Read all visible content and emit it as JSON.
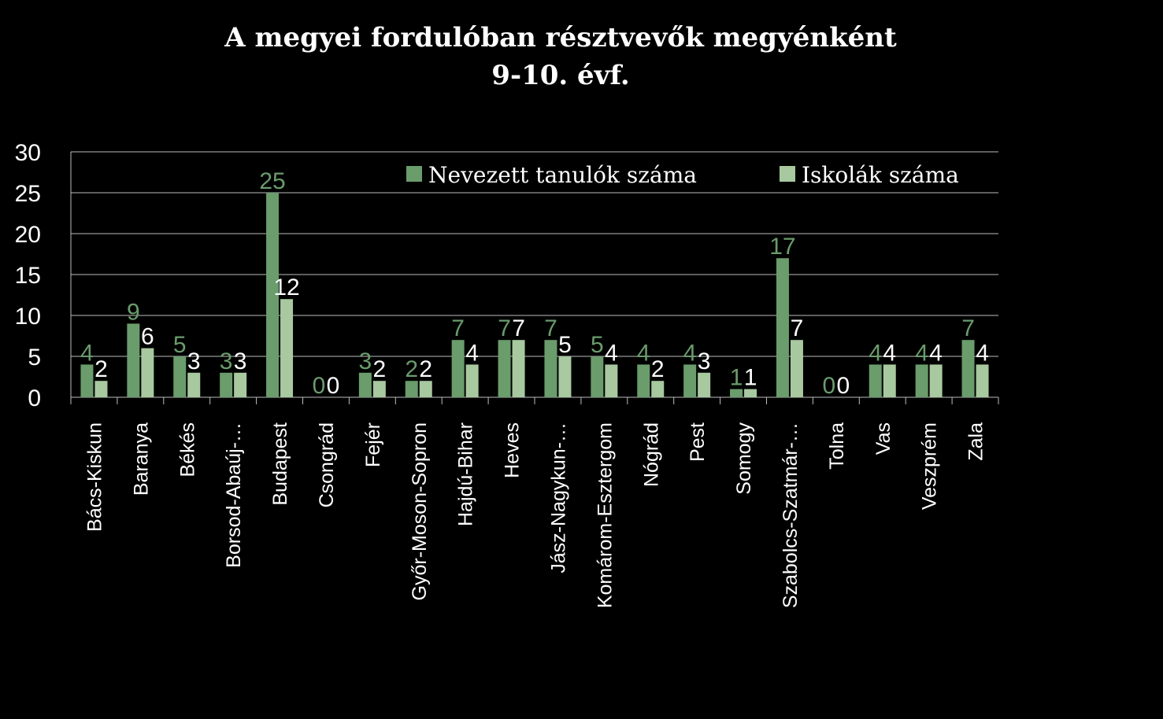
{
  "chart_data": {
    "type": "bar",
    "title": "A  megyei fordulóban résztvevők megyénként",
    "subtitle": "9-10. évf.",
    "categories": [
      "Bács-Kiskun",
      "Baranya",
      "Békés",
      "Borsod-Abaúj-…",
      "Budapest",
      "Csongrád",
      "Fejér",
      "Győr-Moson-Sopron",
      "Hajdú-Bihar",
      "Heves",
      "Jász-Nagykun-…",
      "Komárom-Esztergom",
      "Nógrád",
      "Pest",
      "Somogy",
      "Szabolcs-Szatmár-…",
      "Tolna",
      "Vas",
      "Veszprém",
      "Zala"
    ],
    "series": [
      {
        "name": "Nevezett tanulók száma",
        "color": "#6a9c6c",
        "label_color": "#6a9c6c",
        "values": [
          4,
          9,
          5,
          3,
          25,
          0,
          3,
          2,
          7,
          7,
          7,
          5,
          4,
          4,
          1,
          17,
          0,
          4,
          4,
          7
        ]
      },
      {
        "name": "Iskolák száma",
        "color": "#a8c8a0",
        "label_color": "#ffffff",
        "values": [
          2,
          6,
          3,
          3,
          12,
          0,
          2,
          2,
          4,
          7,
          5,
          4,
          2,
          3,
          1,
          7,
          0,
          4,
          4,
          4
        ]
      }
    ],
    "yticks": [
      "0",
      "5",
      "10",
      "15",
      "20",
      "25",
      "30"
    ],
    "ylim": [
      0,
      30
    ],
    "grid": true,
    "legend_position": "top-right"
  }
}
